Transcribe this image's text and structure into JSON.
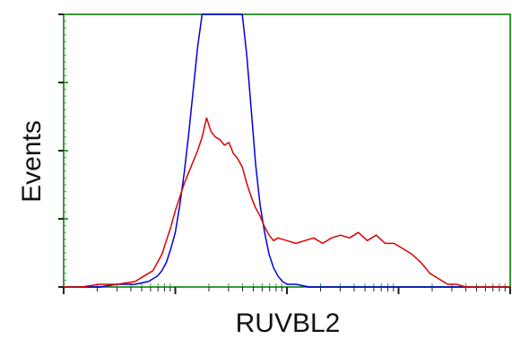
{
  "chart_data": {
    "type": "line",
    "title": "",
    "xlabel": "RUVBL2",
    "ylabel": "Events",
    "x_scale": "log",
    "xlim": [
      0,
      100
    ],
    "ylim": [
      0,
      100
    ],
    "grid": false,
    "legend": "none",
    "axis_color": "#3a9a3a",
    "series": [
      {
        "color": "#0000dd",
        "x": [
          0,
          4,
          8,
          12,
          16,
          19,
          20,
          21,
          22,
          23,
          24,
          25,
          26,
          27,
          28,
          29,
          30,
          31,
          32,
          33,
          34,
          35,
          36,
          37,
          38,
          39,
          40,
          41,
          42,
          43,
          44,
          45,
          46,
          47,
          48,
          49,
          50,
          52,
          55,
          60,
          65,
          70,
          75,
          80,
          85,
          90,
          95,
          100
        ],
        "y": [
          0,
          0,
          0,
          1,
          1,
          2,
          3,
          4,
          6,
          9,
          14,
          20,
          30,
          42,
          56,
          72,
          88,
          100,
          100,
          100,
          100,
          100,
          100,
          100,
          100,
          100,
          100,
          85,
          65,
          45,
          30,
          20,
          12,
          7,
          4,
          2,
          1,
          1,
          0,
          0,
          0,
          0,
          0,
          0,
          0,
          0,
          0,
          0
        ]
      },
      {
        "color": "#dd0000",
        "x": [
          0,
          4,
          8,
          12,
          16,
          18,
          20,
          21,
          22,
          23,
          24,
          25,
          26,
          27,
          28,
          29,
          30,
          31,
          32,
          33,
          34,
          35,
          36,
          37,
          38,
          39,
          40,
          41,
          42,
          43,
          44,
          45,
          46,
          47,
          48,
          50,
          52,
          54,
          56,
          58,
          60,
          62,
          64,
          66,
          68,
          70,
          72,
          74,
          76,
          78,
          80,
          82,
          84,
          86,
          88,
          90,
          92,
          95,
          100
        ],
        "y": [
          0,
          0,
          1,
          1,
          2,
          4,
          6,
          9,
          12,
          17,
          22,
          28,
          33,
          38,
          42,
          46,
          50,
          55,
          62,
          57,
          55,
          54,
          52,
          53,
          49,
          47,
          44,
          38,
          33,
          29,
          26,
          22,
          19,
          17,
          18,
          17,
          16,
          17,
          18,
          16,
          18,
          19,
          18,
          20,
          17,
          19,
          16,
          16,
          14,
          12,
          9,
          5,
          3,
          1,
          1,
          0,
          0,
          0,
          0
        ]
      }
    ]
  }
}
